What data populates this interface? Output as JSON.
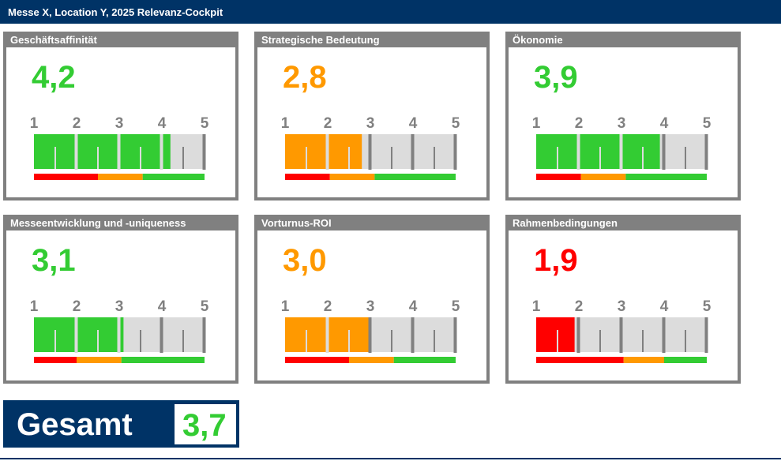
{
  "title": "Messe X, Location Y, 2025 Relevanz-Cockpit",
  "colors": {
    "green": "#33cc33",
    "orange": "#ff9900",
    "red": "#ff0000",
    "navy": "#003366",
    "gray": "#808080",
    "track": "#dcdcdc"
  },
  "scale": {
    "min": 1,
    "max": 5,
    "ticks": [
      "1",
      "2",
      "3",
      "4",
      "5"
    ]
  },
  "cards": [
    {
      "title": "Geschäftsaffinität",
      "value": "4,2",
      "score": 4.2,
      "color": "green",
      "bands": [
        2.5,
        3.55
      ]
    },
    {
      "title": "Strategische Bedeutung",
      "value": "2,8",
      "score": 2.8,
      "color": "orange",
      "bands": [
        2.05,
        3.1
      ]
    },
    {
      "title": "Ökonomie",
      "value": "3,9",
      "score": 3.9,
      "color": "green",
      "bands": [
        2.05,
        3.1
      ]
    },
    {
      "title": "Messeentwicklung und -uniqueness",
      "value": "3,1",
      "score": 3.1,
      "color": "green",
      "bands": [
        2.0,
        3.05
      ]
    },
    {
      "title": "Vorturnus-ROI",
      "value": "3,0",
      "score": 3.0,
      "color": "orange",
      "bands": [
        2.5,
        3.55
      ]
    },
    {
      "title": "Rahmenbedingungen",
      "value": "1,9",
      "score": 1.9,
      "color": "red",
      "bands": [
        3.05,
        4.0
      ]
    }
  ],
  "total": {
    "label": "Gesamt",
    "value": "3,7",
    "color": "green"
  }
}
